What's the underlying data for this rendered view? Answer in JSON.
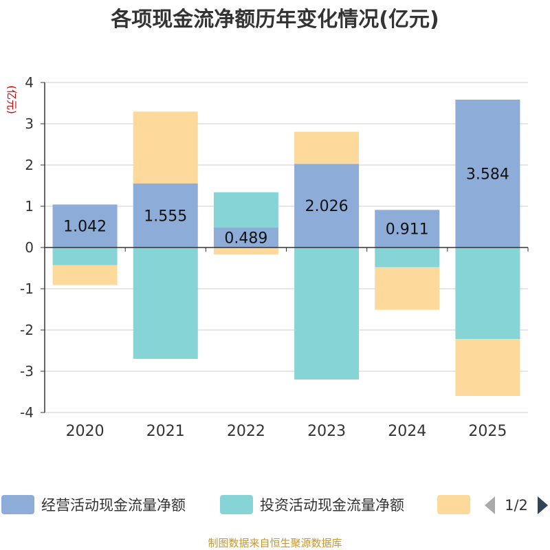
{
  "chart_data": {
    "type": "bar",
    "stacked": true,
    "title": "各项现金流净额历年变化情况(亿元)",
    "ylabel": "(亿元)",
    "xlabel": "",
    "ylim": [
      -4,
      4
    ],
    "yticks": [
      4,
      3,
      2,
      1,
      0,
      -1,
      -2,
      -3,
      -4
    ],
    "categories": [
      "2020",
      "2021",
      "2022",
      "2023",
      "2024",
      "2025"
    ],
    "series": [
      {
        "name": "经营活动现金流量净额",
        "color": "#8eacd8",
        "values": [
          1.042,
          1.555,
          0.489,
          2.026,
          0.911,
          3.584
        ],
        "labels": [
          "1.042",
          "1.555",
          "0.489",
          "2.026",
          "0.911",
          "3.584"
        ]
      },
      {
        "name": "投资活动现金流量净额",
        "color": "#87d4d7",
        "values": [
          -0.43,
          -2.7,
          0.85,
          -3.2,
          -0.48,
          -2.22
        ]
      },
      {
        "name": "",
        "color": "#fdd99b",
        "values": [
          -0.48,
          1.74,
          -0.17,
          0.78,
          -1.03,
          -1.38
        ]
      }
    ],
    "legend_position": "bottom",
    "grid": true
  },
  "legend": {
    "page_indicator": "1/2"
  },
  "footer": {
    "source": "制图数据来自恒生聚源数据库"
  }
}
